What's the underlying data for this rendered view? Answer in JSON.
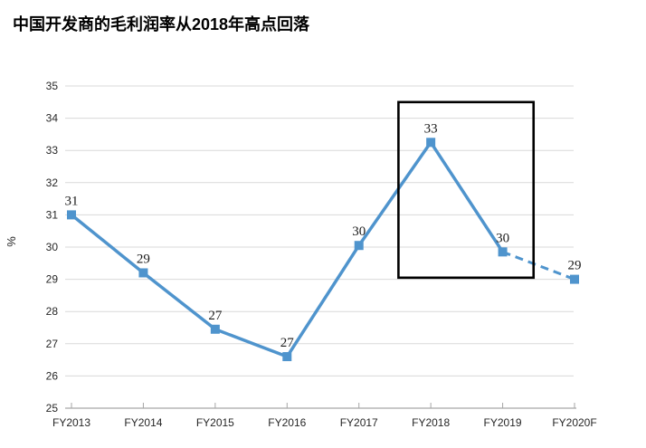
{
  "title": "中国开发商的毛利润率从2018年高点回落",
  "chart_data": {
    "type": "line",
    "title": "中国开发商的毛利润率从2018年高点回落",
    "xlabel": "",
    "ylabel": "%",
    "categories": [
      "FY2013",
      "FY2014",
      "FY2015",
      "FY2016",
      "FY2017",
      "FY2018",
      "FY2019",
      "FY2020F"
    ],
    "series": [
      {
        "values": [
          31.0,
          29.2,
          27.45,
          26.6,
          30.05,
          33.25,
          29.85,
          29.0
        ],
        "point_labels": [
          "31",
          "29",
          "27",
          "27",
          "30",
          "33",
          "30",
          "29"
        ],
        "dashed_segment_start_index": 6,
        "marker": "square",
        "color": "#4F94CD"
      }
    ],
    "ylim": [
      25,
      35
    ],
    "y_ticks": [
      "25",
      "26",
      "27",
      "28",
      "29",
      "30",
      "31",
      "32",
      "33",
      "34",
      "35"
    ],
    "grid": true,
    "legend": "none",
    "highlight_box": {
      "shape": "rectangle",
      "color": "#000000",
      "x_category_index_range": [
        4.55,
        6.43
      ],
      "y_value_range": [
        29.05,
        34.5
      ]
    }
  },
  "colors": {
    "line": "#4F94CD",
    "gridline": "#D9D9D9",
    "axis": "#A6A6A6",
    "tick_text": "#262626",
    "data_label": "#1A1A1A",
    "title_text": "#000000",
    "highlight": "#000000",
    "background": "#FFFFFF"
  }
}
